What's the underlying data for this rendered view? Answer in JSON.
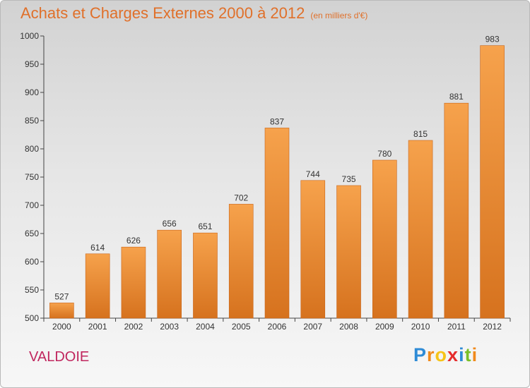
{
  "title": "Achats et Charges Externes 2000 à 2012",
  "unit_note": "(en milliers d'€)",
  "commune": "VALDOIE",
  "logo": {
    "letters": [
      "P",
      "r",
      "o",
      "x",
      "i",
      "t",
      "i"
    ],
    "colors": [
      "#2e8bd6",
      "#f08a1c",
      "#f6c419",
      "#e52b2b",
      "#2e8bd6",
      "#7bbf27",
      "#f08a1c"
    ]
  },
  "colors": {
    "bar_top": "#f6a24c",
    "bar_bottom": "#d6721e",
    "bar_edge": "#c9651a",
    "text": "#333333",
    "accent": "#e0702a"
  },
  "chart_data": {
    "type": "bar",
    "title": "Achats et Charges Externes 2000 à 2012",
    "subtitle": "(en milliers d'€)",
    "categories": [
      "2000",
      "2001",
      "2002",
      "2003",
      "2004",
      "2005",
      "2006",
      "2007",
      "2008",
      "2009",
      "2010",
      "2011",
      "2012"
    ],
    "values": [
      527,
      614,
      626,
      656,
      651,
      702,
      837,
      744,
      735,
      780,
      815,
      881,
      983
    ],
    "ylim": [
      500,
      1000
    ],
    "yticks": [
      500,
      550,
      600,
      650,
      700,
      750,
      800,
      850,
      900,
      950,
      1000
    ],
    "grid": false,
    "data_labels": true
  }
}
